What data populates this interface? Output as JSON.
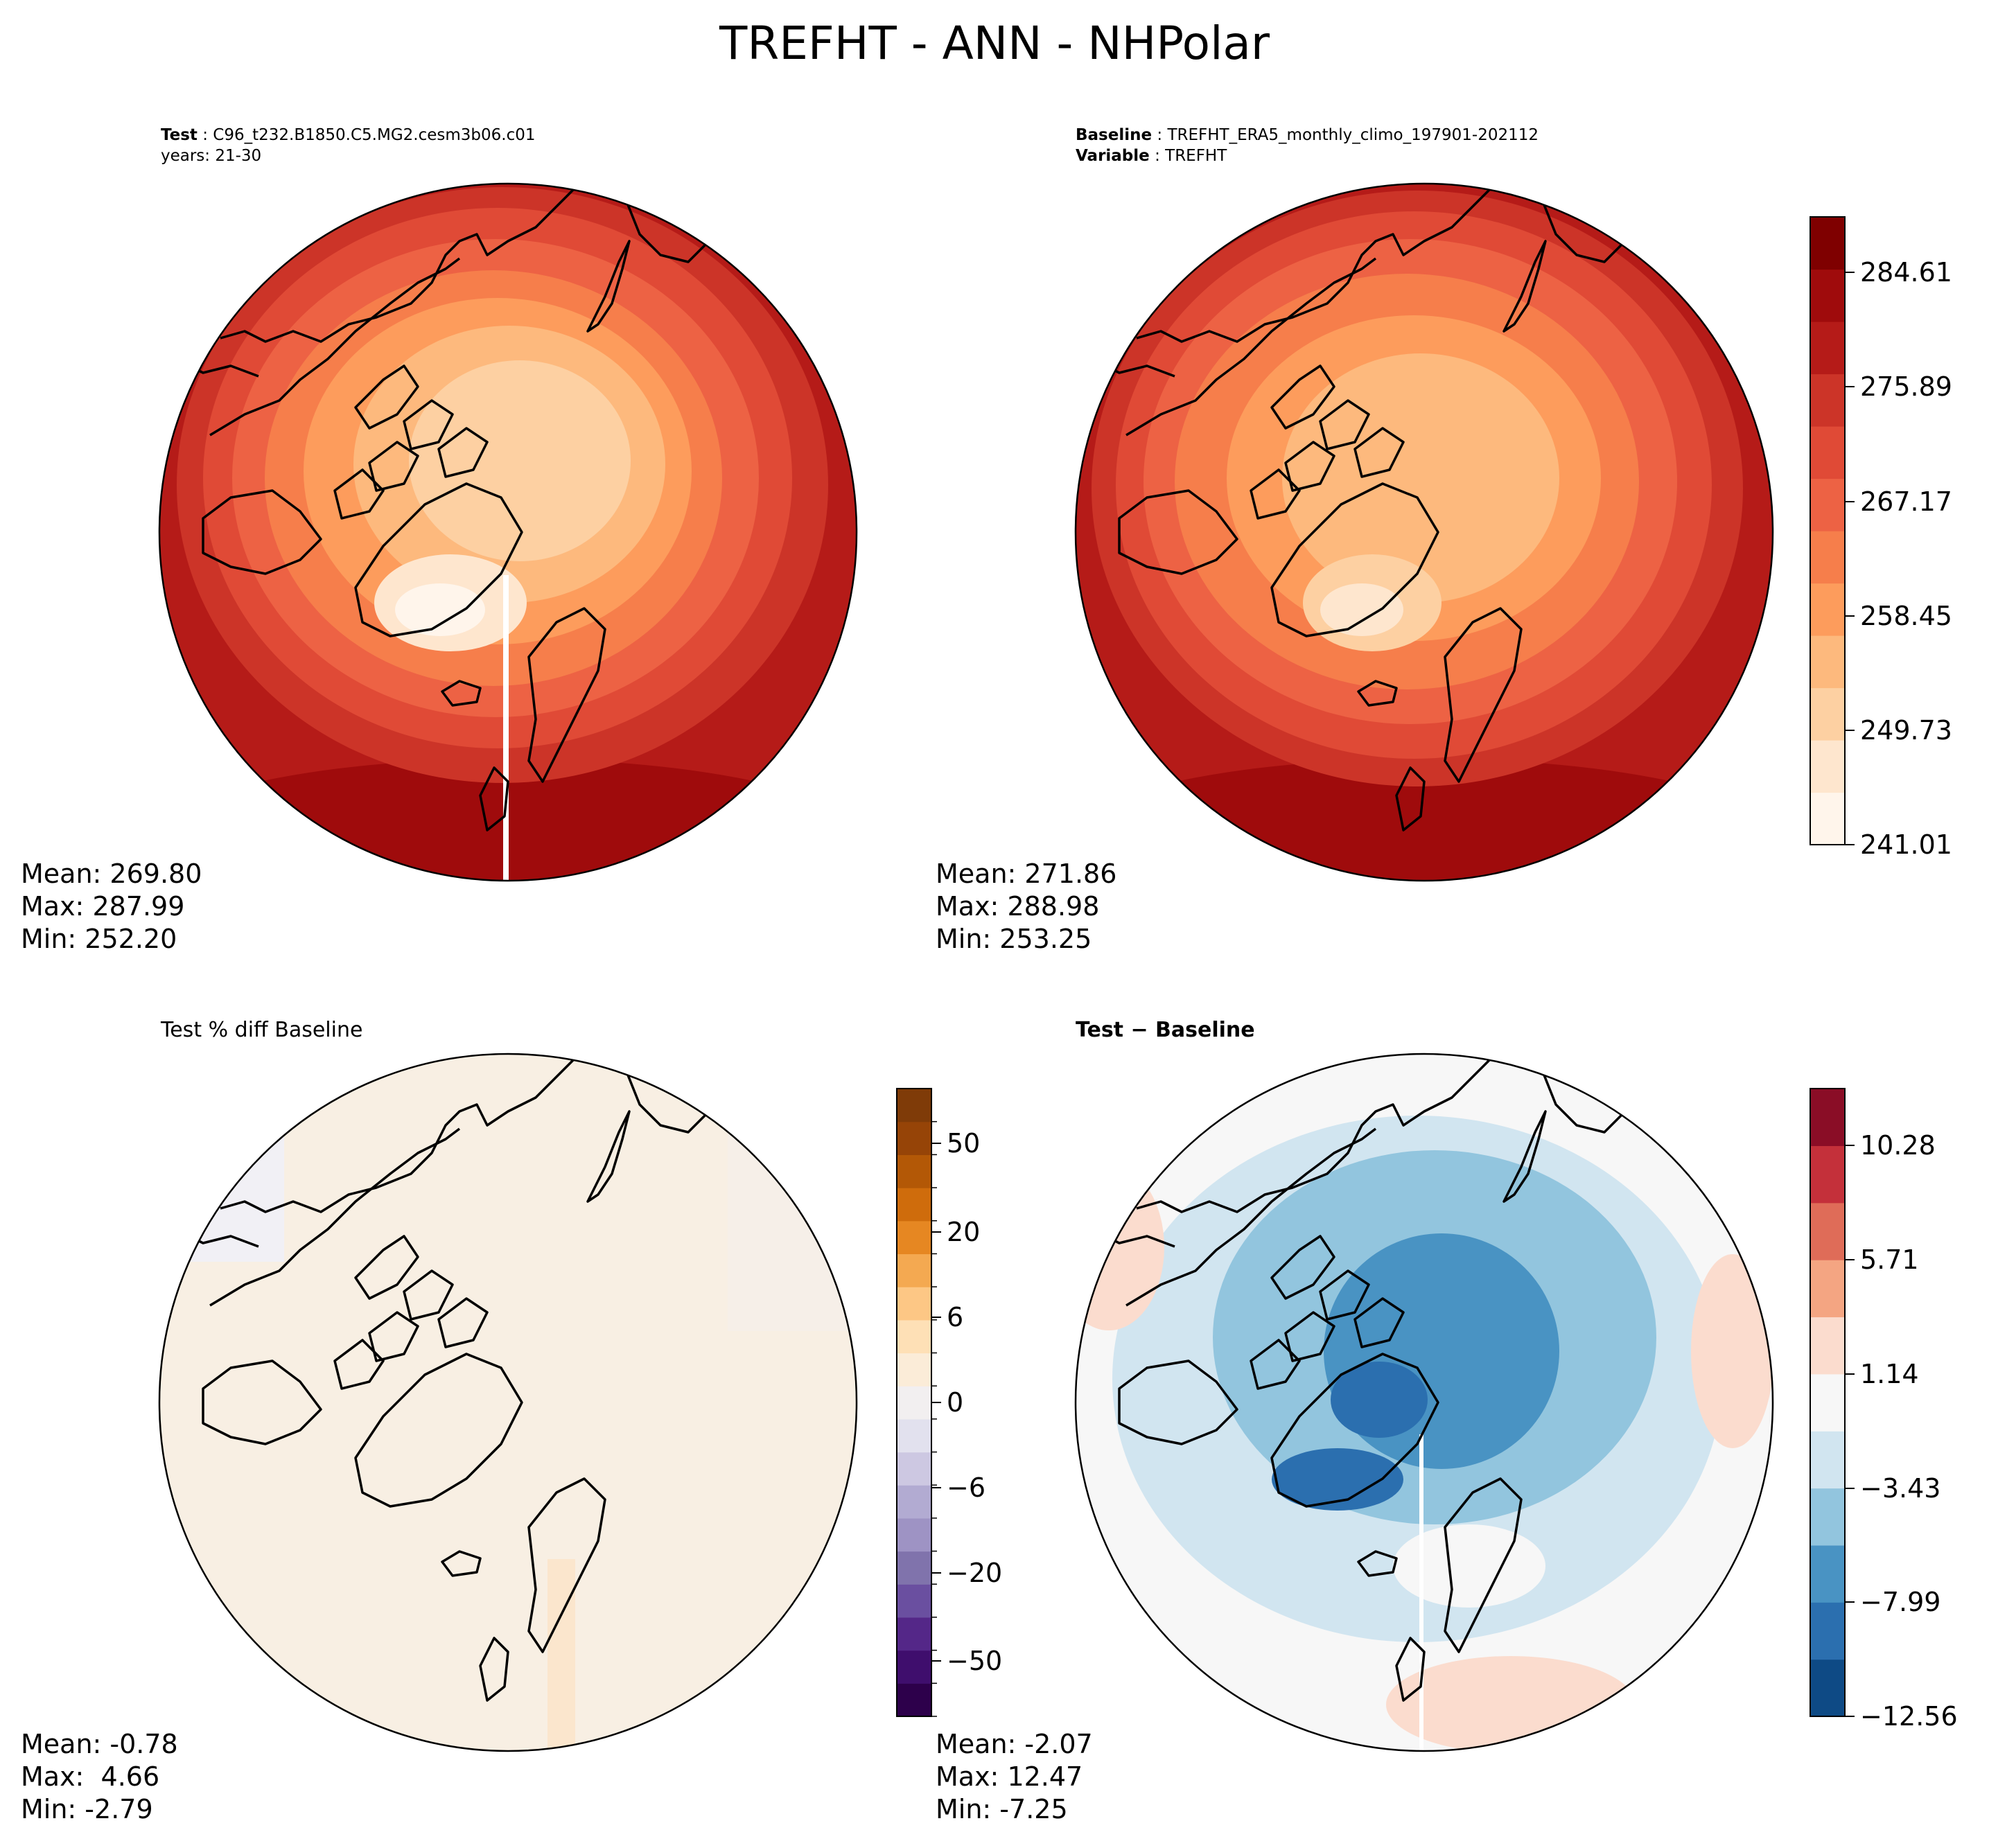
{
  "figure": {
    "title": "TREFHT - ANN - NHPolar"
  },
  "panels": {
    "test": {
      "label_key": "Test",
      "label_value": "C96_t232.B1850.C5.MG2.cesm3b06.c01",
      "label_line2": "years: 21-30",
      "stats": {
        "mean": "Mean: 269.80",
        "max": "Max: 287.99",
        "min": "Min: 252.20"
      }
    },
    "baseline": {
      "label_key": "Baseline",
      "label_value": "TREFHT_ERA5_monthly_climo_197901-202112",
      "label_key2": "Variable",
      "label_value2": "TREFHT",
      "stats": {
        "mean": "Mean: 271.86",
        "max": "Max: 288.98",
        "min": "Min: 253.25"
      }
    },
    "pct_diff": {
      "label": "Test % diff Baseline",
      "stats": {
        "mean": "Mean: -0.78",
        "max": "Max:  4.66",
        "min": "Min: -2.79"
      }
    },
    "diff": {
      "label": "Test − Baseline",
      "stats": {
        "mean": "Mean: -2.07",
        "max": "Max: 12.47",
        "min": "Min: -7.25"
      }
    }
  },
  "colorbars": {
    "temperature": {
      "ticks": [
        "284.61",
        "275.89",
        "267.17",
        "258.45",
        "249.73",
        "241.01"
      ],
      "colors": [
        "#fff5eb",
        "#fee6ce",
        "#fdd0a2",
        "#fdb97d",
        "#fd9c5c",
        "#f67e4b",
        "#ed6244",
        "#e04a36",
        "#cc3428",
        "#b51b18",
        "#9f0b0c",
        "#7f0000"
      ]
    },
    "percent": {
      "ticks": [
        "50",
        "20",
        "6",
        "0",
        "−6",
        "−20",
        "−50"
      ],
      "colors": [
        "#2d004b",
        "#3f0e6d",
        "#542788",
        "#6a4fa0",
        "#8073ac",
        "#9e93c4",
        "#b2abd2",
        "#cdc8e2",
        "#e2e1ee",
        "#f2eff0",
        "#fbecd8",
        "#fee0b6",
        "#fdc785",
        "#f4a951",
        "#e68722",
        "#cf6c0c",
        "#b35806",
        "#964407",
        "#7f3b08"
      ]
    },
    "difference": {
      "ticks": [
        "10.28",
        "5.71",
        "1.14",
        "−3.43",
        "−7.99",
        "−12.56"
      ],
      "colors": [
        "#0e4a85",
        "#2b6faf",
        "#4993c3",
        "#92c5de",
        "#d1e5f0",
        "#f7f7f7",
        "#fbdcce",
        "#f4a582",
        "#df6c58",
        "#c4303a",
        "#8a0d26"
      ]
    }
  }
}
